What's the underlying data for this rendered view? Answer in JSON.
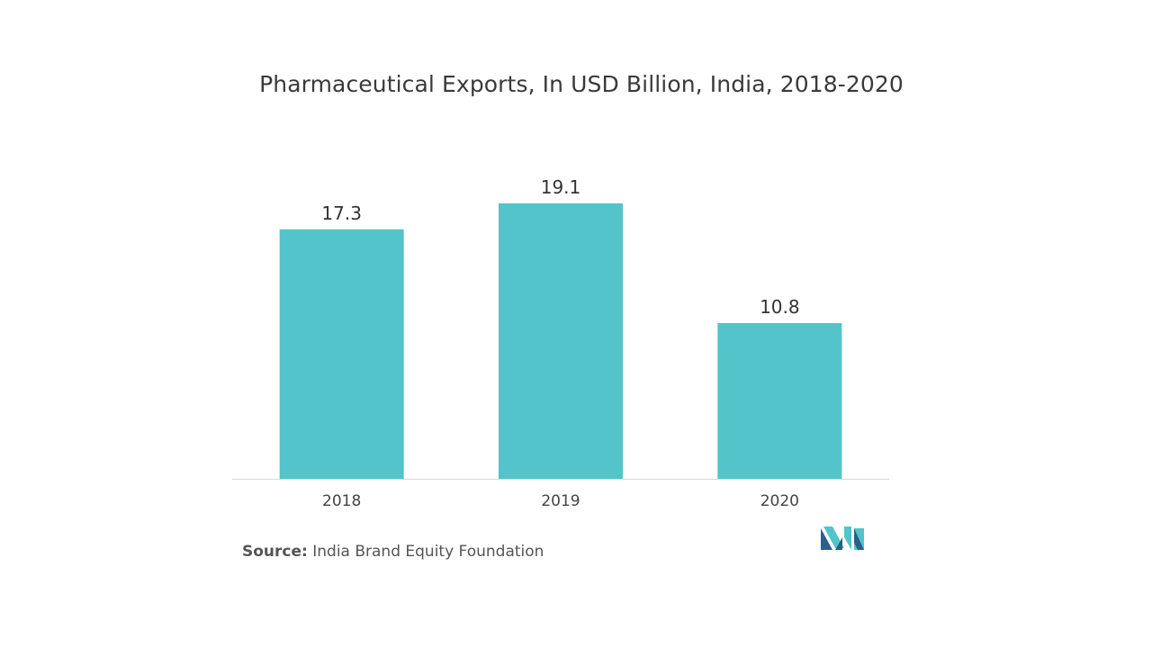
{
  "chart_data": {
    "type": "bar",
    "title": "Pharmaceutical Exports, In USD Billion, India, 2018-2020",
    "categories": [
      "2018",
      "2019",
      "2020"
    ],
    "values": [
      17.3,
      19.1,
      10.8
    ],
    "data_labels": [
      "17.3",
      "19.1",
      "10.8"
    ],
    "xlabel": "",
    "ylabel": "",
    "ylim": [
      0,
      19.1
    ],
    "grid": false,
    "legend": "none",
    "bar_color": "#52c4ca",
    "baseline_color": "#d9d9d9"
  },
  "source": {
    "key": "Source:",
    "text": "India Brand Equity Foundation"
  },
  "logo": {
    "icon": "mordor-intelligence-logo-icon",
    "colors": [
      "#2d5f8a",
      "#52c4ca"
    ]
  }
}
